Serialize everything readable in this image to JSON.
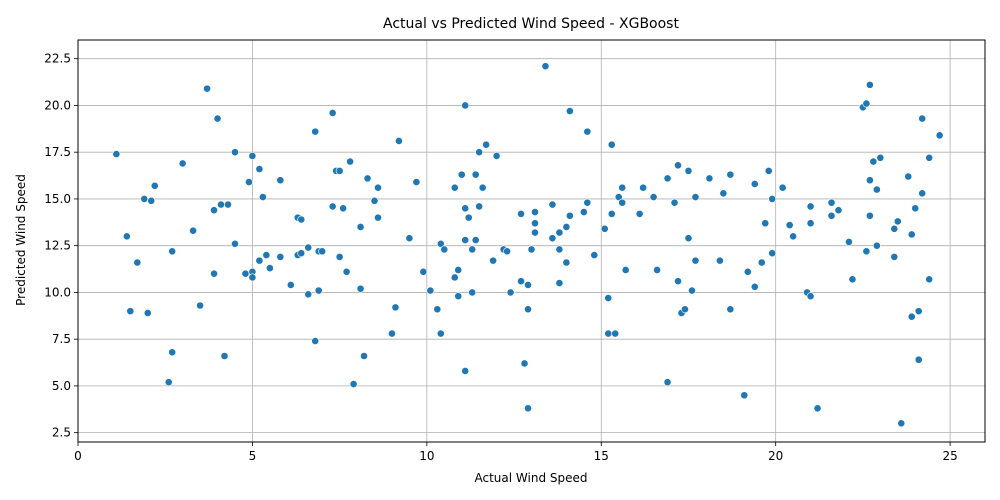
{
  "chart_data": {
    "type": "scatter",
    "title": "Actual vs Predicted Wind Speed - XGBoost",
    "xlabel": "Actual Wind Speed",
    "ylabel": "Predicted Wind Speed",
    "xlim": [
      0,
      26
    ],
    "ylim": [
      2.0,
      23.5
    ],
    "xticks": [
      0,
      5,
      10,
      15,
      20,
      25
    ],
    "yticks": [
      2.5,
      5.0,
      7.5,
      10.0,
      12.5,
      15.0,
      17.5,
      20.0,
      22.5
    ],
    "grid": true,
    "marker_color": "#1f77b4",
    "marker_edge_color": "#ffffff",
    "points": [
      [
        1.1,
        17.4
      ],
      [
        1.4,
        13.0
      ],
      [
        1.5,
        9.0
      ],
      [
        1.7,
        11.6
      ],
      [
        1.9,
        15.0
      ],
      [
        2.0,
        8.9
      ],
      [
        2.1,
        14.9
      ],
      [
        2.2,
        15.7
      ],
      [
        2.6,
        5.2
      ],
      [
        2.7,
        6.8
      ],
      [
        2.7,
        12.2
      ],
      [
        3.0,
        16.9
      ],
      [
        3.3,
        13.3
      ],
      [
        3.5,
        9.3
      ],
      [
        3.7,
        20.9
      ],
      [
        3.9,
        14.4
      ],
      [
        3.9,
        11.0
      ],
      [
        4.0,
        19.3
      ],
      [
        4.1,
        14.7
      ],
      [
        4.2,
        6.6
      ],
      [
        4.3,
        14.7
      ],
      [
        4.5,
        17.5
      ],
      [
        4.5,
        12.6
      ],
      [
        4.8,
        11.0
      ],
      [
        4.9,
        15.9
      ],
      [
        5.0,
        17.3
      ],
      [
        5.0,
        11.1
      ],
      [
        5.0,
        10.8
      ],
      [
        5.2,
        11.7
      ],
      [
        5.2,
        16.6
      ],
      [
        5.3,
        15.1
      ],
      [
        5.4,
        12.0
      ],
      [
        5.5,
        11.3
      ],
      [
        5.8,
        11.9
      ],
      [
        5.8,
        16.0
      ],
      [
        6.1,
        10.4
      ],
      [
        6.3,
        12.0
      ],
      [
        6.3,
        14.0
      ],
      [
        6.4,
        13.9
      ],
      [
        6.4,
        12.1
      ],
      [
        6.6,
        12.4
      ],
      [
        6.6,
        9.9
      ],
      [
        6.8,
        18.6
      ],
      [
        6.8,
        7.4
      ],
      [
        6.9,
        12.2
      ],
      [
        6.9,
        10.1
      ],
      [
        7.0,
        12.2
      ],
      [
        7.3,
        14.6
      ],
      [
        7.3,
        19.6
      ],
      [
        7.4,
        16.5
      ],
      [
        7.5,
        16.5
      ],
      [
        7.5,
        11.9
      ],
      [
        7.6,
        14.5
      ],
      [
        7.7,
        11.1
      ],
      [
        7.8,
        17.0
      ],
      [
        7.9,
        5.1
      ],
      [
        8.1,
        10.2
      ],
      [
        8.1,
        13.5
      ],
      [
        8.2,
        6.6
      ],
      [
        8.3,
        16.1
      ],
      [
        8.5,
        14.9
      ],
      [
        8.6,
        15.6
      ],
      [
        8.6,
        14.0
      ],
      [
        9.0,
        7.8
      ],
      [
        9.1,
        9.2
      ],
      [
        9.2,
        18.1
      ],
      [
        9.5,
        12.9
      ],
      [
        9.7,
        15.9
      ],
      [
        9.9,
        11.1
      ],
      [
        10.1,
        10.1
      ],
      [
        10.3,
        9.1
      ],
      [
        10.4,
        7.8
      ],
      [
        10.4,
        12.6
      ],
      [
        10.5,
        12.3
      ],
      [
        10.8,
        15.6
      ],
      [
        10.8,
        10.8
      ],
      [
        10.9,
        9.8
      ],
      [
        10.9,
        11.2
      ],
      [
        11.0,
        16.3
      ],
      [
        11.1,
        14.5
      ],
      [
        11.1,
        12.8
      ],
      [
        11.1,
        5.8
      ],
      [
        11.1,
        20.0
      ],
      [
        11.2,
        14.0
      ],
      [
        11.3,
        10.0
      ],
      [
        11.3,
        12.3
      ],
      [
        11.4,
        16.3
      ],
      [
        11.4,
        12.8
      ],
      [
        11.5,
        17.5
      ],
      [
        11.5,
        14.6
      ],
      [
        11.6,
        15.6
      ],
      [
        11.7,
        17.9
      ],
      [
        11.9,
        11.7
      ],
      [
        12.0,
        17.3
      ],
      [
        12.2,
        12.3
      ],
      [
        12.3,
        12.2
      ],
      [
        12.4,
        10.0
      ],
      [
        12.7,
        14.2
      ],
      [
        12.7,
        10.6
      ],
      [
        12.8,
        6.2
      ],
      [
        12.9,
        3.8
      ],
      [
        12.9,
        10.4
      ],
      [
        12.9,
        9.1
      ],
      [
        13.0,
        12.3
      ],
      [
        13.1,
        14.3
      ],
      [
        13.1,
        13.2
      ],
      [
        13.1,
        13.7
      ],
      [
        13.4,
        22.1
      ],
      [
        13.6,
        14.7
      ],
      [
        13.6,
        12.9
      ],
      [
        13.8,
        13.2
      ],
      [
        13.8,
        12.3
      ],
      [
        13.8,
        10.5
      ],
      [
        14.0,
        13.5
      ],
      [
        14.0,
        11.6
      ],
      [
        14.1,
        19.7
      ],
      [
        14.1,
        14.1
      ],
      [
        14.5,
        14.3
      ],
      [
        14.6,
        18.6
      ],
      [
        14.6,
        14.8
      ],
      [
        14.8,
        12.0
      ],
      [
        15.1,
        13.4
      ],
      [
        15.2,
        9.7
      ],
      [
        15.2,
        7.8
      ],
      [
        15.3,
        14.2
      ],
      [
        15.3,
        17.9
      ],
      [
        15.4,
        7.8
      ],
      [
        15.5,
        15.1
      ],
      [
        15.6,
        15.6
      ],
      [
        15.6,
        14.8
      ],
      [
        15.7,
        11.2
      ],
      [
        16.1,
        14.2
      ],
      [
        16.2,
        15.6
      ],
      [
        16.5,
        15.1
      ],
      [
        16.6,
        11.2
      ],
      [
        16.9,
        16.1
      ],
      [
        16.9,
        5.2
      ],
      [
        17.1,
        14.8
      ],
      [
        17.2,
        16.8
      ],
      [
        17.2,
        10.6
      ],
      [
        17.3,
        8.9
      ],
      [
        17.4,
        9.1
      ],
      [
        17.5,
        12.9
      ],
      [
        17.5,
        16.5
      ],
      [
        17.6,
        10.1
      ],
      [
        17.7,
        11.7
      ],
      [
        17.7,
        15.1
      ],
      [
        18.1,
        16.1
      ],
      [
        18.4,
        11.7
      ],
      [
        18.5,
        15.3
      ],
      [
        18.7,
        16.3
      ],
      [
        18.7,
        9.1
      ],
      [
        19.1,
        4.5
      ],
      [
        19.2,
        11.1
      ],
      [
        19.4,
        15.8
      ],
      [
        19.4,
        10.3
      ],
      [
        19.6,
        11.6
      ],
      [
        19.7,
        13.7
      ],
      [
        19.8,
        16.5
      ],
      [
        19.9,
        15.0
      ],
      [
        19.9,
        12.1
      ],
      [
        20.2,
        15.6
      ],
      [
        20.4,
        13.6
      ],
      [
        20.5,
        13.0
      ],
      [
        20.9,
        10.0
      ],
      [
        21.0,
        14.6
      ],
      [
        21.0,
        9.8
      ],
      [
        21.0,
        13.7
      ],
      [
        21.2,
        3.8
      ],
      [
        21.6,
        14.1
      ],
      [
        21.6,
        14.8
      ],
      [
        21.8,
        14.4
      ],
      [
        22.1,
        12.7
      ],
      [
        22.2,
        10.7
      ],
      [
        22.5,
        19.9
      ],
      [
        22.6,
        20.1
      ],
      [
        22.6,
        12.2
      ],
      [
        22.7,
        21.1
      ],
      [
        22.7,
        16.0
      ],
      [
        22.7,
        14.1
      ],
      [
        22.8,
        17.0
      ],
      [
        22.9,
        15.5
      ],
      [
        22.9,
        12.5
      ],
      [
        23.0,
        17.2
      ],
      [
        23.4,
        13.4
      ],
      [
        23.4,
        11.9
      ],
      [
        23.5,
        13.8
      ],
      [
        23.6,
        3.0
      ],
      [
        23.8,
        16.2
      ],
      [
        23.9,
        13.1
      ],
      [
        23.9,
        8.7
      ],
      [
        24.0,
        14.5
      ],
      [
        24.1,
        9.0
      ],
      [
        24.1,
        6.4
      ],
      [
        24.2,
        15.3
      ],
      [
        24.2,
        19.3
      ],
      [
        24.4,
        10.7
      ],
      [
        24.4,
        17.2
      ],
      [
        24.7,
        18.4
      ]
    ]
  }
}
